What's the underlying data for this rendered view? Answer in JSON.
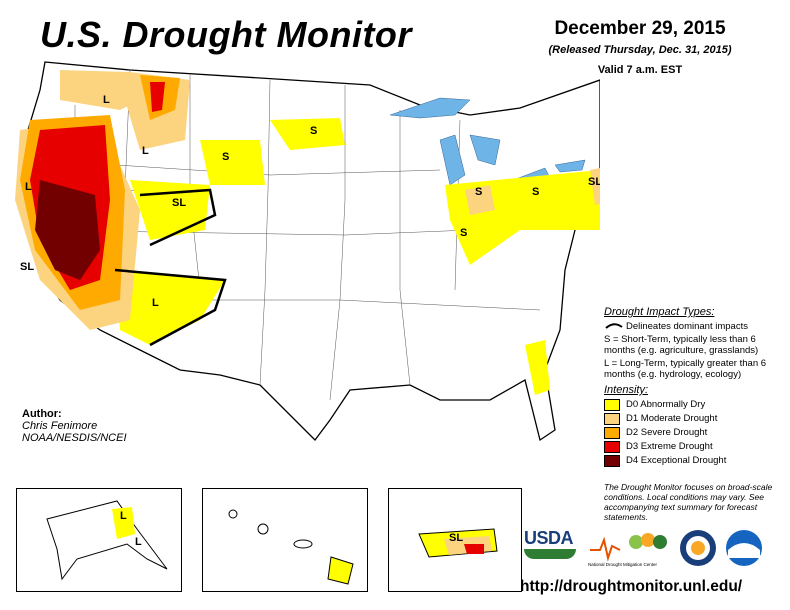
{
  "title": "U.S. Drought Monitor",
  "date": "December 29, 2015",
  "released": "(Released Thursday, Dec. 31, 2015)",
  "valid": "Valid 7 a.m. EST",
  "author": {
    "heading": "Author:",
    "name": "Chris Fenimore",
    "org": "NOAA/NESDIS/NCEI"
  },
  "impact_types": {
    "heading": "Drought Impact Types:",
    "delineates": "Delineates dominant impacts",
    "short_term": "S = Short-Term, typically less than 6 months (e.g. agriculture, grasslands)",
    "long_term": "L = Long-Term, typically greater than 6 months (e.g. hydrology, ecology)"
  },
  "intensity": {
    "heading": "Intensity:",
    "levels": [
      {
        "label": "D0 Abnormally Dry",
        "color": "#ffff00"
      },
      {
        "label": "D1 Moderate Drought",
        "color": "#fcd37f"
      },
      {
        "label": "D2 Severe Drought",
        "color": "#ffaa00"
      },
      {
        "label": "D3 Extreme Drought",
        "color": "#e60000"
      },
      {
        "label": "D4 Exceptional Drought",
        "color": "#730000"
      }
    ]
  },
  "note": "The Drought Monitor focuses on broad-scale conditions. Local conditions may vary. See accompanying text summary for forecast statements.",
  "logos": {
    "usda": "USDA",
    "ndmc": "National Drought Mitigation Center"
  },
  "url": "http://droughtmonitor.unl.edu/",
  "map_labels": {
    "long": "L",
    "short": "S",
    "short_long": "SL"
  },
  "colors": {
    "water": "#6eb4e6",
    "d0": "#ffff00",
    "d1": "#fcd37f",
    "d2": "#ffaa00",
    "d3": "#e60000",
    "d4": "#730000"
  }
}
